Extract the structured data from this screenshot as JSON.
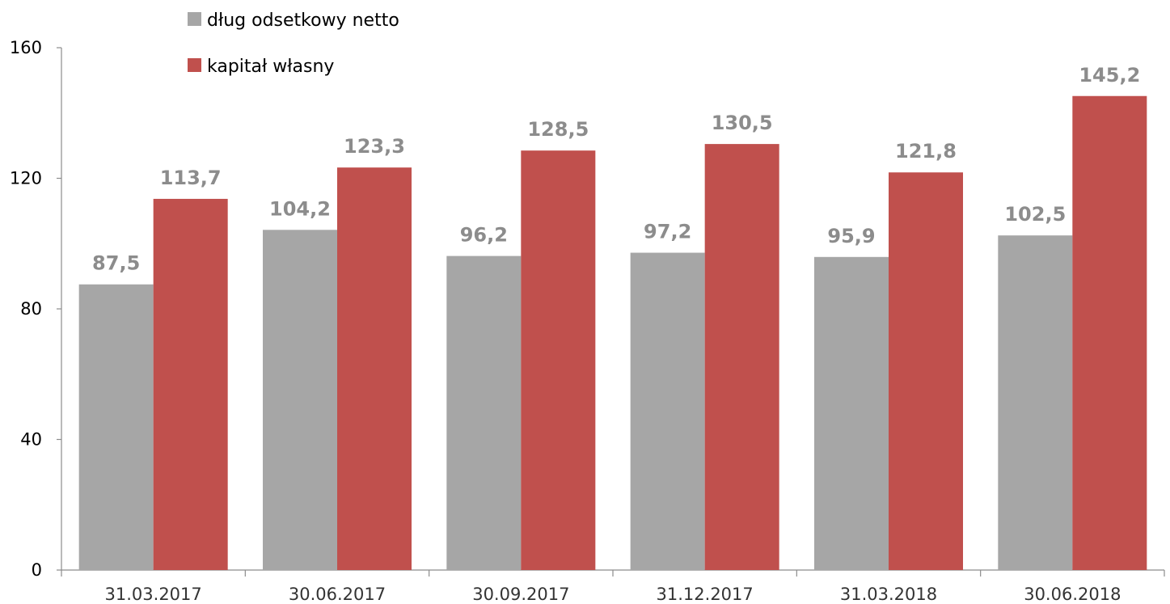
{
  "chart_data": {
    "type": "bar",
    "title": "",
    "xlabel": "",
    "ylabel": "",
    "categories": [
      "31.03.2017",
      "30.06.2017",
      "30.09.2017",
      "31.12.2017",
      "31.03.2018",
      "30.06.2018"
    ],
    "series": [
      {
        "name": "dług odsetkowy netto",
        "color": "#a6a6a6",
        "values": [
          87.5,
          104.2,
          96.2,
          97.2,
          95.9,
          102.5
        ],
        "labels": [
          "87,5",
          "104,2",
          "96,2",
          "97,2",
          "95,9",
          "102,5"
        ]
      },
      {
        "name": "kapitał własny",
        "color": "#c0504d",
        "values": [
          113.7,
          123.3,
          128.5,
          130.5,
          121.8,
          145.2
        ],
        "labels": [
          "113,7",
          "123,3",
          "128,5",
          "130,5",
          "121,8",
          "145,2"
        ]
      }
    ],
    "ylim": [
      0,
      160
    ],
    "yticks": [
      0,
      40,
      80,
      120,
      160
    ],
    "grid": false,
    "legend_position": "top-left",
    "data_label_color": "#8c8c8c",
    "axis_color": "#8c8c8c"
  }
}
